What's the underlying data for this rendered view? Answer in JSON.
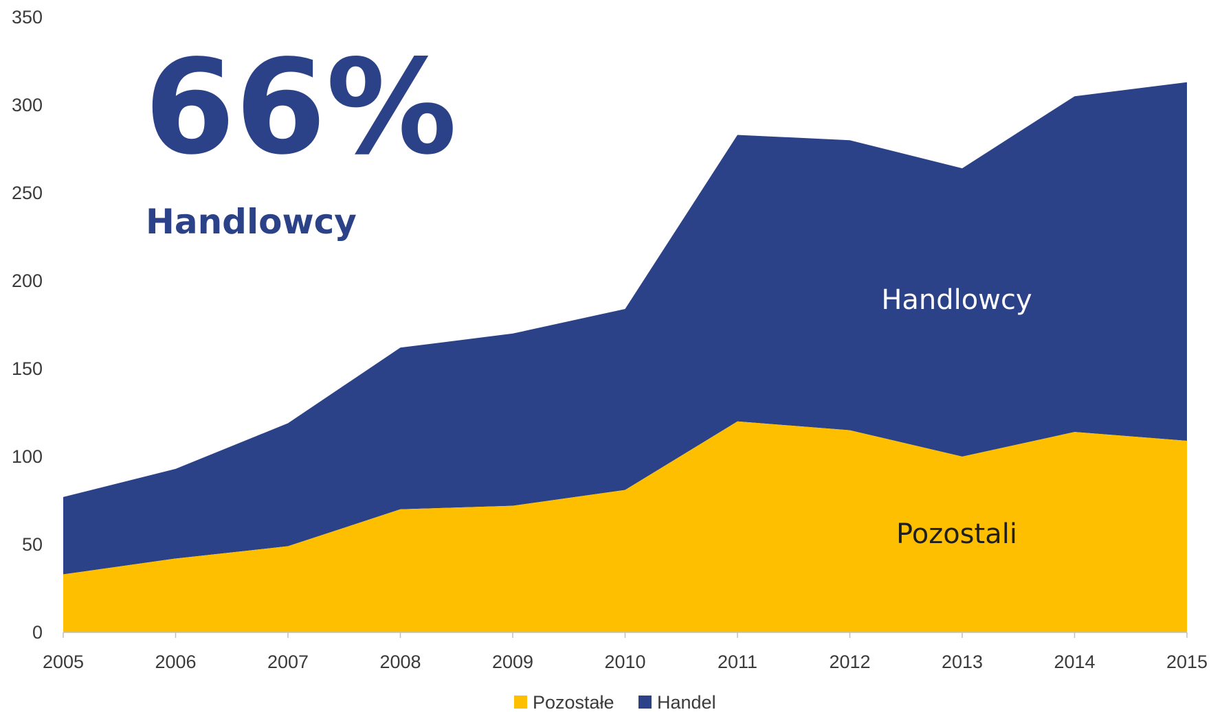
{
  "overlay": {
    "percent": "66%",
    "label": "Handlowcy",
    "area_label_top": "Handlowcy",
    "area_label_bottom": "Pozostali"
  },
  "colors": {
    "handel": "#2b4289",
    "pozostale": "#fdbf00",
    "axis": "#bfbfbf",
    "text": "#3b3b3b",
    "label_dark": "#1f1f1f"
  },
  "chart_data": {
    "type": "area",
    "stacked": true,
    "x": [
      "2005",
      "2006",
      "2007",
      "2008",
      "2009",
      "2010",
      "2011",
      "2012",
      "2013",
      "2014",
      "2015"
    ],
    "series": [
      {
        "name": "Pozostałe",
        "values": [
          33,
          42,
          49,
          70,
          72,
          81,
          120,
          115,
          100,
          114,
          109
        ]
      },
      {
        "name": "Handel",
        "values": [
          44,
          51,
          70,
          92,
          98,
          103,
          163,
          165,
          164,
          191,
          204
        ]
      }
    ],
    "ylim": [
      0,
      350
    ],
    "yticks": [
      0,
      50,
      100,
      150,
      200,
      250,
      300,
      350
    ],
    "legend_position": "bottom",
    "grid": false
  }
}
